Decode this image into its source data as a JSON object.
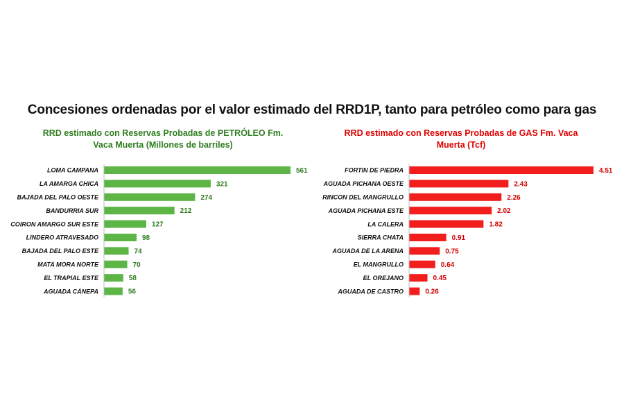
{
  "title": "Concesiones ordenadas por el valor estimado del RRD1P, tanto para petróleo como para gas",
  "chart_data": [
    {
      "type": "bar",
      "orientation": "horizontal",
      "title_lines": [
        "RRD estimado con Reservas Probadas de PETRÓLEO  Fm.",
        "Vaca Muerta (Millones de barriles)"
      ],
      "categories": [
        "LOMA CAMPANA",
        "LA AMARGA CHICA",
        "BAJADA DEL PALO OESTE",
        "BANDURRIA SUR",
        "COIRON AMARGO SUR ESTE",
        "LINDERO ATRAVESADO",
        "BAJADA DEL PALO ESTE",
        "MATA MORA NORTE",
        "EL TRAPIAL ESTE",
        "AGUADA CÁNEPA"
      ],
      "values": [
        561,
        321,
        274,
        212,
        127,
        98,
        74,
        70,
        58,
        56
      ],
      "value_labels": [
        "561",
        "321",
        "274",
        "212",
        "127",
        "98",
        "74",
        "70",
        "58",
        "56"
      ],
      "xlim": [
        0,
        561
      ],
      "bar_color": "#5cb545",
      "label_color": "#2e7d1f",
      "grid": false,
      "legend": "none"
    },
    {
      "type": "bar",
      "orientation": "horizontal",
      "title_lines": [
        "RRD estimado con Reservas Probadas de GAS  Fm. Vaca",
        "Muerta (Tcf)"
      ],
      "categories": [
        "FORTIN DE PIEDRA",
        "AGUADA PICHANA OESTE",
        "RINCON DEL MANGRULLO",
        "AGUADA PICHANA ESTE",
        "LA CALERA",
        "SIERRA CHATA",
        "AGUADA DE LA ARENA",
        "EL MANGRULLO",
        "EL OREJANO",
        "AGUADA DE CASTRO"
      ],
      "values": [
        4.51,
        2.43,
        2.26,
        2.02,
        1.82,
        0.91,
        0.75,
        0.64,
        0.45,
        0.26
      ],
      "value_labels": [
        "4.51",
        "2.43",
        "2.26",
        "2.02",
        "1.82",
        "0.91",
        "0.75",
        "0.64",
        "0.45",
        "0.26"
      ],
      "xlim": [
        0,
        4.51
      ],
      "bar_color": "#f21d1d",
      "label_color": "#d40000",
      "grid": false,
      "legend": "none"
    }
  ]
}
